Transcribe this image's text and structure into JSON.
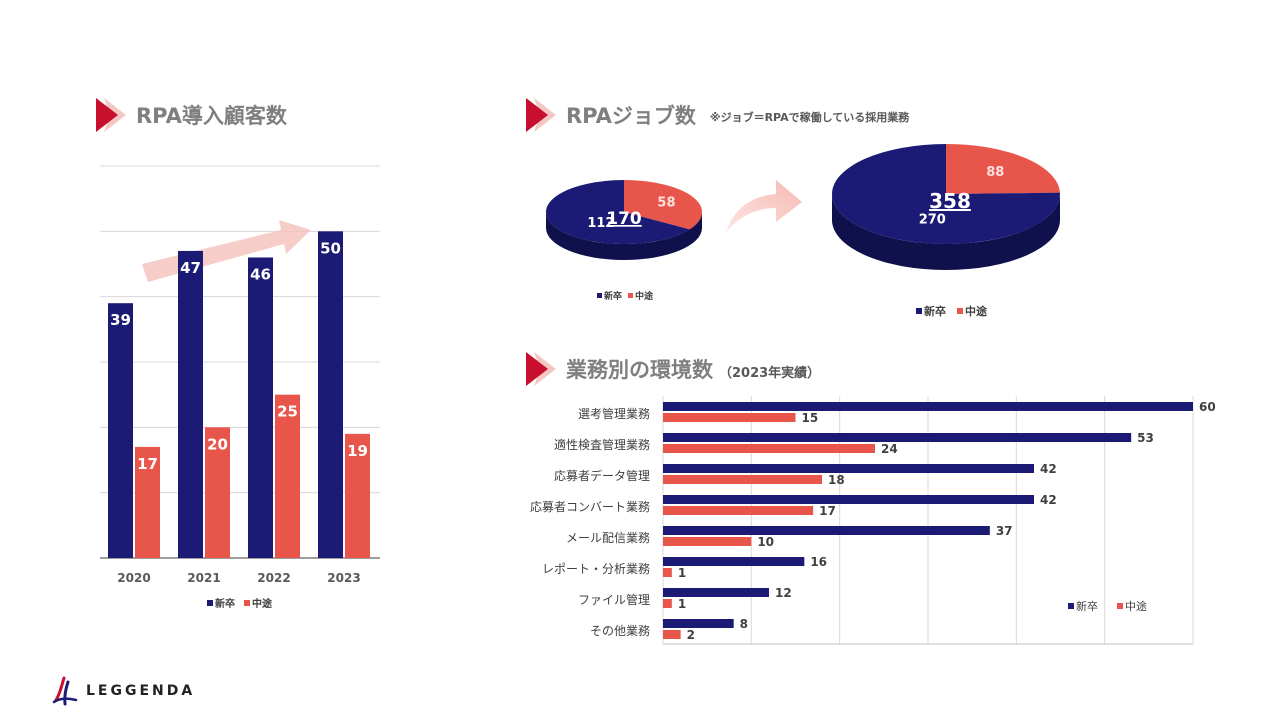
{
  "sections": {
    "customers": {
      "title": "RPA導入顧客数"
    },
    "jobs": {
      "title": "RPAジョブ数",
      "note": "※ジョブ＝RPAで稼働している採用業務"
    },
    "environment": {
      "title": "業務別の環境数",
      "sub": "（2023年実績）"
    }
  },
  "legend": {
    "new": "新卒",
    "mid": "中途"
  },
  "colors": {
    "new": "#1b1b75",
    "mid": "#e8554b",
    "accent": "#c8102e"
  },
  "logo": {
    "text": "LEGGENDA"
  },
  "chart_data": [
    {
      "type": "bar",
      "title": "RPA導入顧客数",
      "categories": [
        "2020",
        "2021",
        "2022",
        "2023"
      ],
      "series": [
        {
          "name": "新卒",
          "values": [
            39,
            47,
            46,
            50
          ]
        },
        {
          "name": "中途",
          "values": [
            17,
            20,
            25,
            19
          ]
        }
      ],
      "ylim": [
        0,
        60
      ],
      "grid": true,
      "legend": "bottom"
    },
    {
      "type": "pie",
      "title": "RPAジョブ数",
      "total": "170",
      "labels": [
        "新卒",
        "中途"
      ],
      "values": [
        112,
        58
      ],
      "legend": "bottom"
    },
    {
      "type": "pie",
      "title": "RPAジョブ数",
      "total": "358",
      "labels": [
        "新卒",
        "中途"
      ],
      "values": [
        270,
        88
      ],
      "legend": "bottom"
    },
    {
      "type": "bar",
      "orientation": "horizontal",
      "title": "業務別の環境数",
      "categories": [
        "選考管理業務",
        "適性検査管理業務",
        "応募者データ管理",
        "応募者コンバート業務",
        "メール配信業務",
        "レポート・分析業務",
        "ファイル管理",
        "その他業務"
      ],
      "series": [
        {
          "name": "新卒",
          "values": [
            60,
            53,
            42,
            42,
            37,
            16,
            12,
            8
          ]
        },
        {
          "name": "中途",
          "values": [
            15,
            24,
            18,
            17,
            10,
            1,
            1,
            2
          ]
        }
      ],
      "xlim": [
        0,
        60
      ],
      "grid": true,
      "legend": "bottom-right"
    }
  ]
}
